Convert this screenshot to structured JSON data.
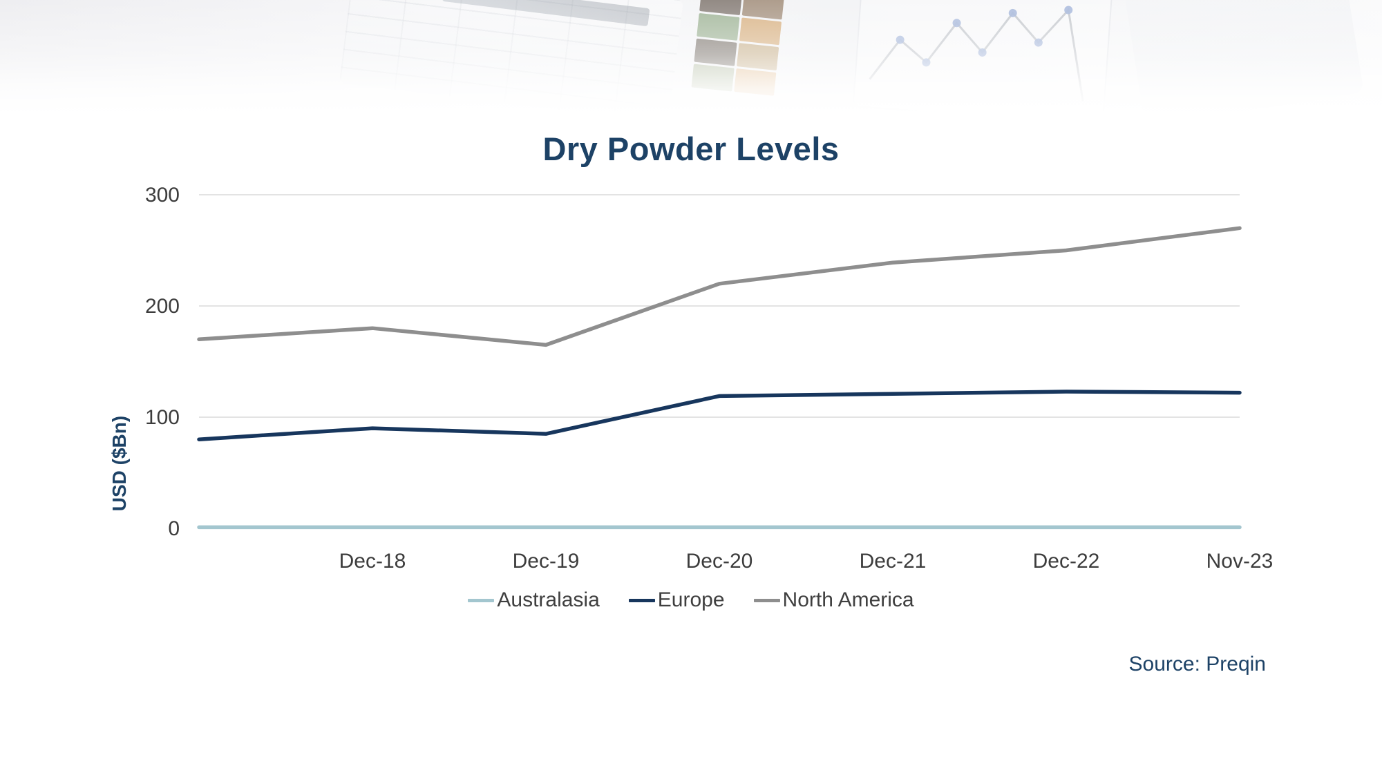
{
  "chart_data": {
    "type": "line",
    "title": "Dry Powder Levels",
    "ylabel": "USD ($Bn)",
    "xlabel": "",
    "categories": [
      "",
      "Dec-18",
      "Dec-19",
      "Dec-20",
      "Dec-21",
      "Dec-22",
      "Nov-23"
    ],
    "ylim": [
      0,
      300
    ],
    "yticks": [
      0,
      100,
      200,
      300
    ],
    "grid": "horizontal",
    "legend_position": "bottom",
    "series": [
      {
        "name": "Australasia",
        "color": "#a3c6cf",
        "values": [
          1,
          1,
          1,
          1,
          1,
          1,
          1
        ]
      },
      {
        "name": "Europe",
        "color": "#17365d",
        "values": [
          80,
          90,
          85,
          119,
          121,
          123,
          122
        ]
      },
      {
        "name": "North America",
        "color": "#8e8e8e",
        "values": [
          170,
          180,
          165,
          220,
          239,
          250,
          270
        ]
      }
    ],
    "source": "Source: Preqin",
    "colors": {
      "title": "#1d4266",
      "axis_text": "#3c3c3c",
      "gridline": "#e3e3e3"
    },
    "decorative_swatches": [
      "#4a3b2f",
      "#7a5c3e",
      "#6f8f5f",
      "#c98a3e",
      "#3e3226",
      "#b08a4f",
      "#8a9b6e",
      "#d89a50"
    ]
  }
}
